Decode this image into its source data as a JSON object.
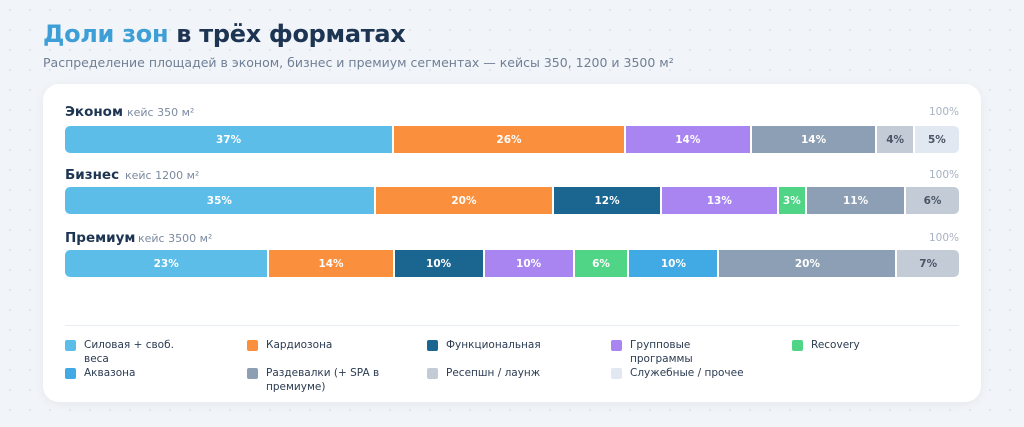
{
  "header": {
    "title_accent": "Доли зон",
    "title_rest": " в трёх форматах",
    "subtitle": "Распределение площадей в эконом, бизнес и премиум сегментах — кейсы 350, 1200 и 3500 м²"
  },
  "colors": {
    "strength": "#5bbde8",
    "cardio": "#fa8f3d",
    "functional": "#1b6690",
    "group": "#a985f2",
    "recovery": "#4fd585",
    "aqua": "#41a9e3",
    "lockers": "#8d9fb5",
    "reception": "#c3cbd7",
    "service": "#e1e8f1"
  },
  "chart_data": {
    "type": "bar",
    "stacked": true,
    "orientation": "horizontal",
    "total_label": "100%",
    "rows": [
      {
        "name": "Эконом",
        "case": "кейс 350 м²",
        "segments": [
          {
            "key": "strength",
            "value": 37,
            "label": "37%"
          },
          {
            "key": "cardio",
            "value": 26,
            "label": "26%"
          },
          {
            "key": "group",
            "value": 14,
            "label": "14%"
          },
          {
            "key": "lockers",
            "value": 14,
            "label": "14%"
          },
          {
            "key": "reception",
            "value": 4,
            "label": "4%"
          },
          {
            "key": "service",
            "value": 5,
            "label": "5%"
          }
        ]
      },
      {
        "name": "Бизнес",
        "case": "кейс 1200 м²",
        "segments": [
          {
            "key": "strength",
            "value": 35,
            "label": "35%"
          },
          {
            "key": "cardio",
            "value": 20,
            "label": "20%"
          },
          {
            "key": "functional",
            "value": 12,
            "label": "12%"
          },
          {
            "key": "group",
            "value": 13,
            "label": "13%"
          },
          {
            "key": "recovery",
            "value": 3,
            "label": "3%"
          },
          {
            "key": "lockers",
            "value": 11,
            "label": "11%"
          },
          {
            "key": "reception",
            "value": 6,
            "label": "6%"
          }
        ]
      },
      {
        "name": "Премиум",
        "case": "кейс 3500 м²",
        "segments": [
          {
            "key": "strength",
            "value": 23,
            "label": "23%"
          },
          {
            "key": "cardio",
            "value": 14,
            "label": "14%"
          },
          {
            "key": "functional",
            "value": 10,
            "label": "10%"
          },
          {
            "key": "group",
            "value": 10,
            "label": "10%"
          },
          {
            "key": "recovery",
            "value": 6,
            "label": "6%"
          },
          {
            "key": "aqua",
            "value": 10,
            "label": "10%"
          },
          {
            "key": "lockers",
            "value": 20,
            "label": "20%"
          },
          {
            "key": "reception",
            "value": 7,
            "label": "7%"
          }
        ]
      }
    ],
    "legend": [
      {
        "key": "strength",
        "label": "Силовая + своб. веса"
      },
      {
        "key": "cardio",
        "label": "Кардиозона"
      },
      {
        "key": "functional",
        "label": "Функциональная"
      },
      {
        "key": "group",
        "label": "Групповые программы"
      },
      {
        "key": "recovery",
        "label": "Recovery"
      },
      {
        "key": "aqua",
        "label": "Аквазона"
      },
      {
        "key": "lockers",
        "label": "Раздевалки (+ SPA в премиуме)"
      },
      {
        "key": "reception",
        "label": "Ресепшн / лаунж"
      },
      {
        "key": "service",
        "label": "Служебные / прочее"
      }
    ]
  }
}
